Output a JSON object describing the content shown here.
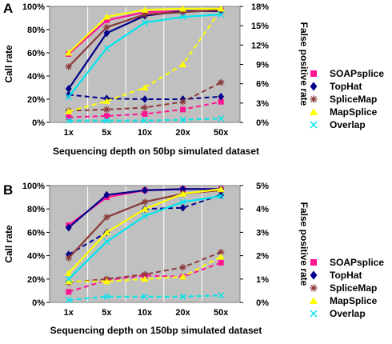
{
  "colors": {
    "plot_bg": "#c0c0c0",
    "grid": "#ffffff",
    "axis": "#000000"
  },
  "series_styles": [
    {
      "name": "SOAPsplice",
      "color": "#ff1493",
      "marker": "square"
    },
    {
      "name": "TopHat",
      "color": "#00008b",
      "marker": "diamond"
    },
    {
      "name": "SpliceMap",
      "color": "#8b3a3a",
      "marker": "star"
    },
    {
      "name": "MapSplice",
      "color": "#ffff00",
      "marker": "triangle"
    },
    {
      "name": "Overlap",
      "color": "#00e5ee",
      "marker": "x"
    }
  ],
  "chart_data": [
    {
      "panel_label": "A",
      "type": "line",
      "xlabel": "Sequencing depth on 50bp simulated dataset",
      "ylabel": "Call rate",
      "y2label": "False positive rate",
      "categories": [
        "1x",
        "5x",
        "10x",
        "20x",
        "50x"
      ],
      "ylim": [
        0,
        100
      ],
      "yticks": [
        "0%",
        "20%",
        "40%",
        "60%",
        "80%",
        "100%"
      ],
      "y2lim": [
        0,
        18
      ],
      "y2ticks": [
        "0%",
        "3%",
        "6%",
        "9%",
        "12%",
        "15%",
        "18%"
      ],
      "call_rate_series": [
        {
          "name": "SOAPsplice",
          "values": [
            59,
            88,
            95,
            96,
            96
          ]
        },
        {
          "name": "TopHat",
          "values": [
            29,
            77,
            92,
            96,
            96
          ]
        },
        {
          "name": "SpliceMap",
          "values": [
            48,
            82,
            93,
            95,
            97
          ]
        },
        {
          "name": "MapSplice",
          "values": [
            60,
            91,
            97,
            98,
            98
          ]
        },
        {
          "name": "Overlap",
          "values": [
            22,
            64,
            86,
            91,
            93
          ]
        }
      ],
      "fpr_series": [
        {
          "name": "SOAPsplice",
          "values": [
            0.8,
            1.0,
            1.3,
            2.0,
            3.2
          ]
        },
        {
          "name": "TopHat",
          "values": [
            4.3,
            3.7,
            3.6,
            3.6,
            4.0
          ]
        },
        {
          "name": "SpliceMap",
          "values": [
            1.8,
            2.0,
            2.3,
            3.2,
            6.2
          ]
        },
        {
          "name": "MapSplice",
          "values": [
            1.7,
            3.3,
            5.4,
            9.0,
            17.5
          ]
        },
        {
          "name": "Overlap",
          "values": [
            0.3,
            0.3,
            0.3,
            0.4,
            0.6
          ]
        }
      ],
      "legend": [
        "SOAPsplice",
        "TopHat",
        "SpliceMap",
        "MapSplice",
        "Overlap"
      ]
    },
    {
      "panel_label": "B",
      "type": "line",
      "xlabel": "Sequencing depth on 150bp simulated dataset",
      "ylabel": "Call rate",
      "y2label": "False positive rate",
      "categories": [
        "1x",
        "5x",
        "10x",
        "20x",
        "50x"
      ],
      "ylim": [
        0,
        100
      ],
      "yticks": [
        "0%",
        "20%",
        "40%",
        "60%",
        "80%",
        "100%"
      ],
      "y2lim": [
        0,
        5
      ],
      "y2ticks": [
        "0%",
        "1%",
        "2%",
        "3%",
        "4%",
        "5%"
      ],
      "call_rate_series": [
        {
          "name": "SOAPsplice",
          "values": [
            66,
            90,
            96,
            97,
            97
          ]
        },
        {
          "name": "TopHat",
          "values": [
            64,
            92,
            96,
            97,
            97
          ]
        },
        {
          "name": "SpliceMap",
          "values": [
            38,
            73,
            86,
            93,
            96
          ]
        },
        {
          "name": "MapSplice",
          "values": [
            25,
            60,
            80,
            93,
            97
          ]
        },
        {
          "name": "Overlap",
          "values": [
            20,
            52,
            74,
            86,
            91
          ]
        }
      ],
      "fpr_series": [
        {
          "name": "SOAPsplice",
          "values": [
            0.45,
            0.95,
            1.15,
            1.1,
            1.7
          ]
        },
        {
          "name": "TopHat",
          "values": [
            2.05,
            3.0,
            4.0,
            4.05,
            4.6
          ]
        },
        {
          "name": "SpliceMap",
          "values": [
            0.85,
            1.0,
            1.2,
            1.5,
            2.15
          ]
        },
        {
          "name": "MapSplice",
          "values": [
            0.9,
            0.9,
            1.0,
            1.1,
            1.95
          ]
        },
        {
          "name": "Overlap",
          "values": [
            0.1,
            0.25,
            0.25,
            0.25,
            0.3
          ]
        }
      ],
      "legend": [
        "SOAPsplice",
        "TopHat",
        "SpliceMap",
        "MapSplice",
        "Overlap"
      ]
    }
  ]
}
